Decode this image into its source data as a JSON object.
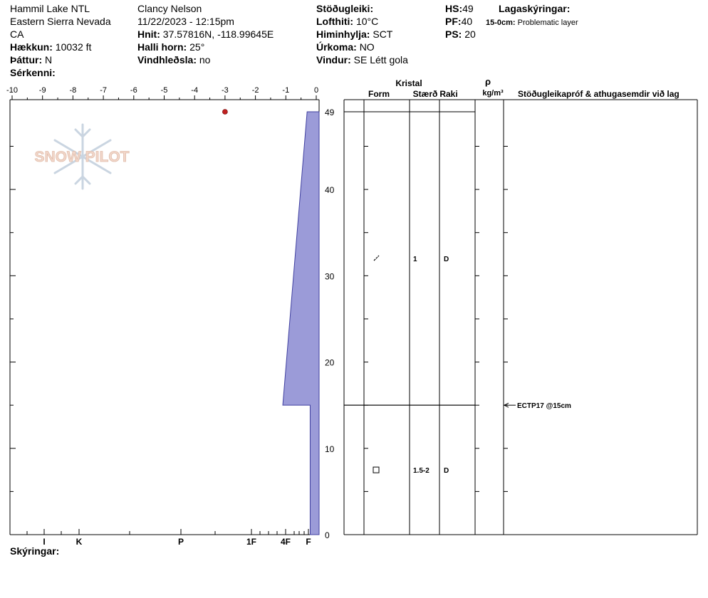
{
  "header": {
    "location": "Hammil Lake NTL",
    "range": "Eastern Sierra Nevada",
    "state": "CA",
    "elevation_label": "Hækkun:",
    "elevation_value": "10032 ft",
    "aspect_label": "Þáttur:",
    "aspect_value": "N",
    "features_label": "Sérkenni:",
    "observer": "Clancy Nelson",
    "datetime": "11/22/2023 - 12:15pm",
    "coords_label": "Hnit:",
    "coords_value": "37.57816N, -118.99645E",
    "slope_label": "Halli horn:",
    "slope_value": "25°",
    "wind_loading_label": "Vindhleðsla:",
    "wind_loading_value": "no",
    "stability_label": "Stöðugleiki:",
    "air_temp_label": "Lofthiti:",
    "air_temp_value": "10°C",
    "sky_label": "Himinhylja:",
    "sky_value": "SCT",
    "precip_label": "Úrkoma:",
    "precip_value": "NO",
    "wind_label": "Vindur:",
    "wind_value": "SE Létt gola",
    "hs_label": "HS:",
    "hs_value": "49",
    "pf_label": "PF:",
    "pf_value": "40",
    "ps_label": "PS:",
    "ps_value": "20",
    "layer_notes_label": "Lagaskýringar:",
    "layer_note_depth": "15-0cm:",
    "layer_note_text": "Problematic layer",
    "comments_label": "Skýringar:"
  },
  "logo": {
    "text": "SNOW PILOT"
  },
  "chart_data": {
    "type": "area",
    "title": "",
    "temperature_axis": {
      "ticks": [
        "-10",
        "-9",
        "-8",
        "-7",
        "-6",
        "-5",
        "-4",
        "-3",
        "-2",
        "-1",
        "0"
      ],
      "range": [
        -10,
        0
      ]
    },
    "depth_axis": {
      "ticks": [
        "49",
        "40",
        "30",
        "20",
        "10",
        "0"
      ],
      "range": [
        0,
        49
      ]
    },
    "hardness_axis": {
      "labels": [
        "I",
        "K",
        "P",
        "1F",
        "4F",
        "F"
      ]
    },
    "temperature_points": [
      {
        "depth": 49,
        "temp": -3
      }
    ],
    "hardness_profile": [
      {
        "depth": 49,
        "hardness_units": 0.3
      },
      {
        "depth": 15,
        "hardness_units": 1.1
      },
      {
        "depth": 15,
        "hardness_units": 0.2
      },
      {
        "depth": 0,
        "hardness_units": 0.2
      }
    ],
    "colors": {
      "hardness_fill": "#9b9bd8",
      "hardness_stroke": "#4040a0",
      "temp_point": "#c02020"
    }
  },
  "layers_table": {
    "crystal_header": "Kristal",
    "form_header": "Form",
    "size_header": "Stærð",
    "moisture_header": "Raki",
    "density_symbol": "ρ",
    "density_unit": "kg/m³",
    "tests_header": "Stöðugleikapróf & athugasemdir við lag",
    "layers": [
      {
        "top": 49,
        "bottom": 15,
        "form": "Faceted rounded (slash)",
        "size": "1",
        "moisture": "D"
      },
      {
        "top": 15,
        "bottom": 0,
        "form": "Faceted (square)",
        "size": "1.5-2",
        "moisture": "D"
      }
    ],
    "test_result": {
      "depth": 15,
      "label": "ECTP17 @15cm"
    }
  }
}
